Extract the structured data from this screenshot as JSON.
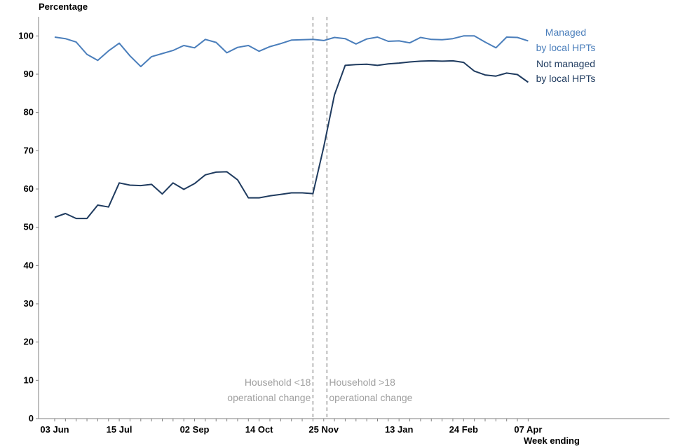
{
  "chart_data": {
    "type": "line",
    "ylabel": "Percentage",
    "xlabel": "Week ending",
    "ylim": [
      0,
      105
    ],
    "yticks": [
      0,
      10,
      20,
      30,
      40,
      50,
      60,
      70,
      80,
      90,
      100
    ],
    "x_tick_labels": [
      "03 Jun",
      "15 Jul",
      "02 Sep",
      "14 Oct",
      "25 Nov",
      "13 Jan",
      "24 Feb",
      "07 Apr"
    ],
    "x_tick_indices": [
      0,
      6,
      13,
      19,
      25,
      32,
      38,
      44
    ],
    "grid": false,
    "series": [
      {
        "name": "Managed by local HPTs",
        "label_lines": [
          "Managed",
          "by local HPTs"
        ],
        "color": "#4a7ebb",
        "values": [
          99.7,
          99.3,
          98.4,
          95.2,
          93.6,
          96.1,
          98.1,
          94.8,
          92.0,
          94.6,
          95.4,
          96.2,
          97.5,
          96.9,
          99.1,
          98.3,
          95.6,
          97.0,
          97.5,
          96.0,
          97.2,
          98.0,
          98.9,
          99.0,
          99.1,
          98.8,
          99.6,
          99.3,
          97.9,
          99.2,
          99.7,
          98.6,
          98.7,
          98.2,
          99.6,
          99.1,
          99.0,
          99.3,
          100.0,
          100.0,
          98.4,
          96.9,
          99.7,
          99.6,
          98.7
        ]
      },
      {
        "name": "Not managed by local HPTs",
        "label_lines": [
          "Not managed",
          "by local HPTs"
        ],
        "color": "#1f3b5f",
        "values": [
          52.6,
          53.6,
          52.3,
          52.3,
          55.8,
          55.3,
          61.6,
          61.0,
          60.9,
          61.2,
          58.7,
          61.6,
          59.9,
          61.4,
          63.7,
          64.4,
          64.5,
          62.4,
          57.7,
          57.7,
          58.2,
          58.6,
          59.0,
          59.0,
          58.8,
          71.0,
          84.6,
          92.3,
          92.5,
          92.6,
          92.3,
          92.7,
          92.9,
          93.2,
          93.4,
          93.5,
          93.4,
          93.5,
          93.1,
          90.8,
          89.8,
          89.5,
          90.3,
          89.9,
          87.9
        ]
      }
    ],
    "annotations": [
      {
        "label_lines": [
          "Household <18",
          "operational change"
        ],
        "x_index": 24.0,
        "side": "left",
        "line_style": "dashed",
        "color": "#a0a0a0"
      },
      {
        "label_lines": [
          "Household >18",
          "operational change"
        ],
        "x_index": 25.3,
        "side": "right",
        "line_style": "dashed",
        "color": "#a0a0a0"
      }
    ]
  }
}
